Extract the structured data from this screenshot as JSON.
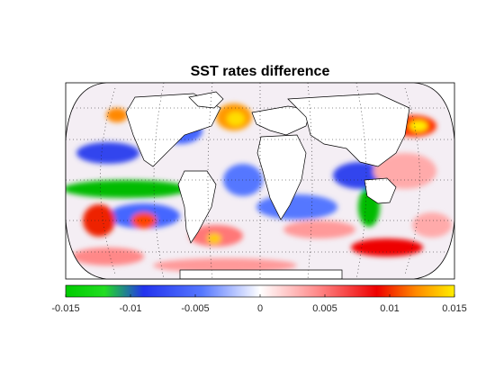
{
  "figure": {
    "title": "SST rates difference"
  },
  "colorbar": {
    "ticks": [
      "-0.015",
      "-0.01",
      "-0.005",
      "0",
      "0.005",
      "0.01",
      "0.015"
    ],
    "range": [
      -0.015,
      0.015
    ],
    "colors": [
      "#00cc00",
      "#22dd22",
      "#2233ee",
      "#5577ff",
      "#ffffff",
      "#ff8888",
      "#ee0000",
      "#ff8800",
      "#ffee00"
    ]
  },
  "map": {
    "projection": "robinson",
    "graticule": "dotted",
    "land_color": "#ffffff",
    "coastline_color": "#000000"
  }
}
